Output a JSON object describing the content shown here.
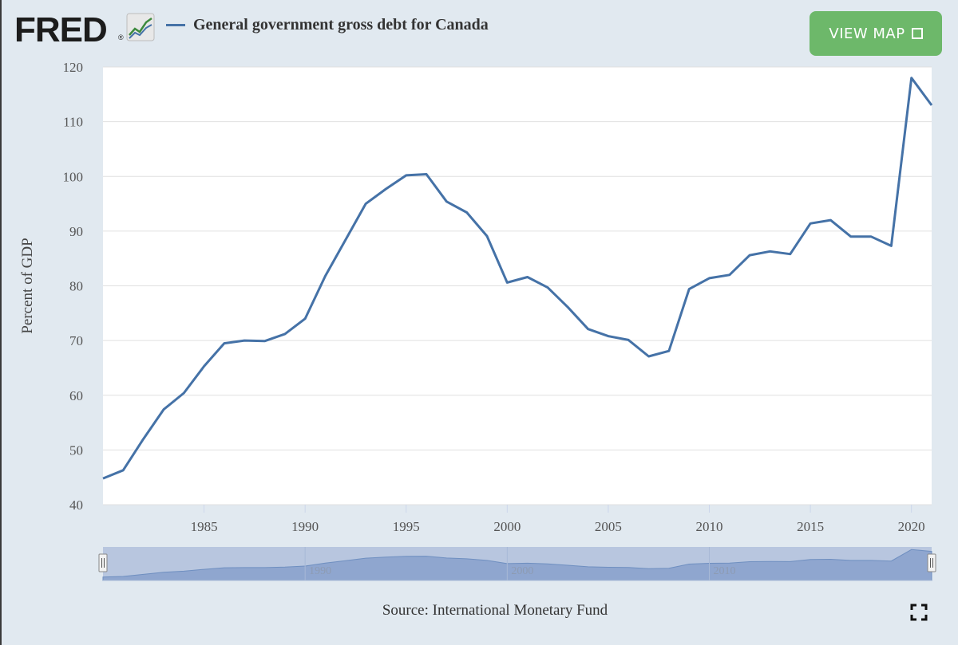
{
  "header": {
    "logo_text": "FRED",
    "logo_reg": "®",
    "logo_icon": "line-chart-icon",
    "series_title": "General government gross debt for Canada",
    "view_map_label": "VIEW MAP",
    "view_map_icon": "external-box-icon"
  },
  "footer": {
    "source": "Source: International Monetary Fund",
    "fullscreen_icon": "fullscreen-icon"
  },
  "colors": {
    "series": "#4572a7",
    "background": "#e1e9f0",
    "plot": "#ffffff",
    "button": "#6db86a",
    "navigator_fill": "#8fa6cf",
    "navigator_mask": "#b8c6df"
  },
  "chart_data": {
    "type": "line",
    "title": "General government gross debt for Canada",
    "xlabel": "",
    "ylabel": "Percent of GDP",
    "ylim": [
      40,
      120
    ],
    "xlim": [
      1980,
      2021
    ],
    "yticks": [
      40,
      50,
      60,
      70,
      80,
      90,
      100,
      110,
      120
    ],
    "xticks": [
      1985,
      1990,
      1995,
      2000,
      2005,
      2010,
      2015,
      2020
    ],
    "grid": true,
    "series": [
      {
        "name": "General government gross debt for Canada",
        "x": [
          1980,
          1981,
          1982,
          1983,
          1984,
          1985,
          1986,
          1987,
          1988,
          1989,
          1990,
          1991,
          1992,
          1993,
          1994,
          1995,
          1996,
          1997,
          1998,
          1999,
          2000,
          2001,
          2002,
          2003,
          2004,
          2005,
          2006,
          2007,
          2008,
          2009,
          2010,
          2011,
          2012,
          2013,
          2014,
          2015,
          2016,
          2017,
          2018,
          2019,
          2020,
          2021
        ],
        "y": [
          44.8,
          46.3,
          52.0,
          57.4,
          60.4,
          65.3,
          69.5,
          70.0,
          69.9,
          71.2,
          74.0,
          81.8,
          88.4,
          95.0,
          97.7,
          100.2,
          100.4,
          95.4,
          93.4,
          89.1,
          80.6,
          81.6,
          79.7,
          76.1,
          72.1,
          70.8,
          70.1,
          67.1,
          68.1,
          79.4,
          81.4,
          82.0,
          85.6,
          86.3,
          85.8,
          91.4,
          92.0,
          89.0,
          89.0,
          87.3,
          118.0,
          113.0
        ]
      }
    ],
    "navigator": {
      "xticks": [
        1990,
        2000,
        2010
      ]
    }
  }
}
